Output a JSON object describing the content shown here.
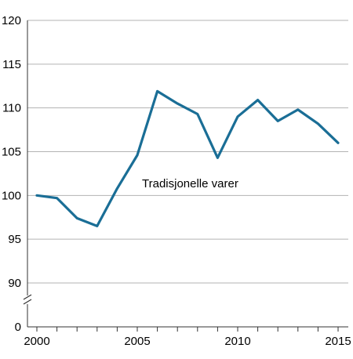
{
  "chart_data": {
    "type": "line",
    "title": "",
    "xlabel": "",
    "ylabel": "",
    "x": [
      2000,
      2001,
      2002,
      2003,
      2004,
      2005,
      2006,
      2007,
      2008,
      2009,
      2010,
      2011,
      2012,
      2013,
      2014,
      2015
    ],
    "series": [
      {
        "name": "Tradisjonelle varer",
        "values": [
          100.0,
          99.7,
          97.4,
          96.5,
          100.8,
          104.6,
          111.9,
          110.5,
          109.3,
          104.3,
          109.0,
          110.9,
          108.5,
          109.8,
          108.2,
          106.0
        ],
        "color": "#1a6e96"
      }
    ],
    "annotation": "Tradisjonelle varer",
    "x_ticks_major": [
      2000,
      2005,
      2010,
      2015
    ],
    "x_tick_labels": [
      "2000",
      "2005",
      "2010",
      "2015"
    ],
    "y_ticks": [
      0,
      90,
      95,
      100,
      105,
      110,
      115,
      120
    ],
    "y_tick_labels": [
      "0",
      "90",
      "95",
      "100",
      "105",
      "110",
      "115",
      "120"
    ],
    "ylim": [
      90,
      120
    ],
    "y_axis_break": true,
    "grid": true,
    "colors": {
      "grid": "#b3b3b3",
      "axis": "#333333",
      "line": "#1a6e96"
    }
  }
}
